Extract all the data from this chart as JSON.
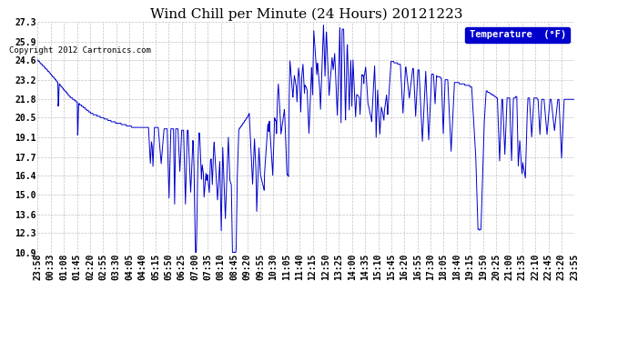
{
  "title": "Wind Chill per Minute (24 Hours) 20121223",
  "copyright": "Copyright 2012 Cartronics.com",
  "legend_label": "Temperature  (°F)",
  "yticks": [
    10.9,
    12.3,
    13.6,
    15.0,
    16.4,
    17.7,
    19.1,
    20.5,
    21.8,
    23.2,
    24.6,
    25.9,
    27.3
  ],
  "ymin": 10.9,
  "ymax": 27.3,
  "line_color": "#0000cc",
  "bg_color": "#ffffff",
  "plot_bg_color": "#ffffff",
  "grid_color": "#bbbbbb",
  "title_fontsize": 11,
  "copyright_fontsize": 6.5,
  "tick_fontsize": 7,
  "legend_fontsize": 7.5,
  "x_tick_labels": [
    "23:58",
    "00:33",
    "01:08",
    "01:45",
    "02:20",
    "02:55",
    "03:30",
    "04:05",
    "04:40",
    "05:15",
    "05:50",
    "06:25",
    "07:00",
    "07:35",
    "08:10",
    "08:45",
    "09:20",
    "09:55",
    "10:30",
    "11:05",
    "11:40",
    "12:15",
    "12:50",
    "13:25",
    "14:00",
    "14:35",
    "15:10",
    "15:45",
    "16:20",
    "16:55",
    "17:30",
    "18:05",
    "18:40",
    "19:15",
    "19:50",
    "20:25",
    "21:00",
    "21:35",
    "22:10",
    "22:45",
    "23:20",
    "23:55"
  ]
}
